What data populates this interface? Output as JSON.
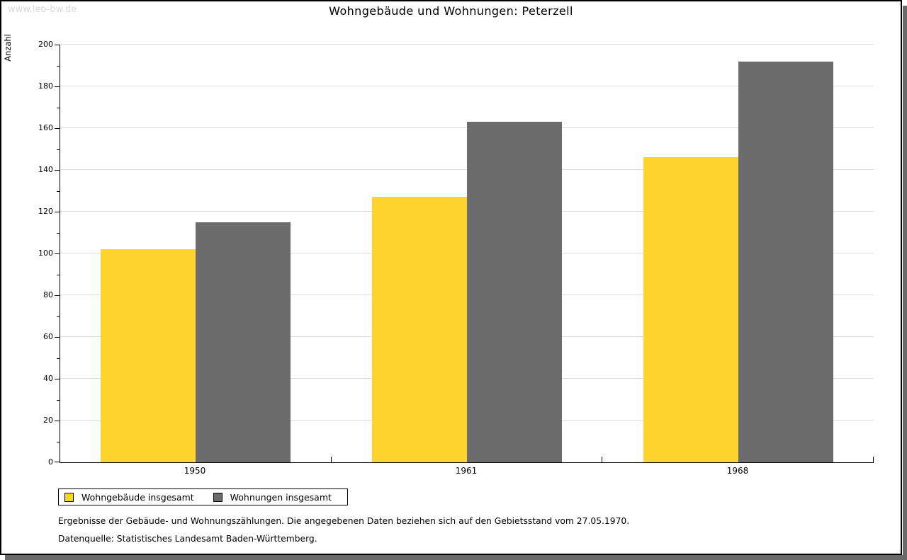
{
  "watermark": "www.leo-bw.de",
  "title": "Wohngebäude und Wohnungen: Peterzell",
  "footer": {
    "line1": "Ergebnisse der Gebäude- und Wohnungszählungen. Die angegebenen Daten beziehen sich auf den Gebietsstand vom 27.05.1970.",
    "line2": "Datenquelle: Statistisches Landesamt Baden-Württemberg."
  },
  "colors": {
    "series_yellow": "#fcd42d",
    "series_gray": "#6c6c6c",
    "gridline": "#dcdcdc",
    "axis": "#000000",
    "watermark": "#d9d9d9",
    "shadow": "#696969"
  },
  "chart_data": {
    "type": "bar",
    "title": "Wohngebäude und Wohnungen: Peterzell",
    "xlabel": "",
    "ylabel": "Anzahl",
    "categories": [
      "1950",
      "1961",
      "1968"
    ],
    "series": [
      {
        "name": "Wohngebäude insgesamt",
        "color": "#fcd42d",
        "values": [
          102,
          127,
          146
        ]
      },
      {
        "name": "Wohnungen insgesamt",
        "color": "#6c6c6c",
        "values": [
          115,
          163,
          192
        ]
      }
    ],
    "ylim": [
      0,
      200
    ],
    "ytick_step": 20,
    "minor_tick_step": 10,
    "grid": true,
    "legend_position": "bottom-left"
  }
}
